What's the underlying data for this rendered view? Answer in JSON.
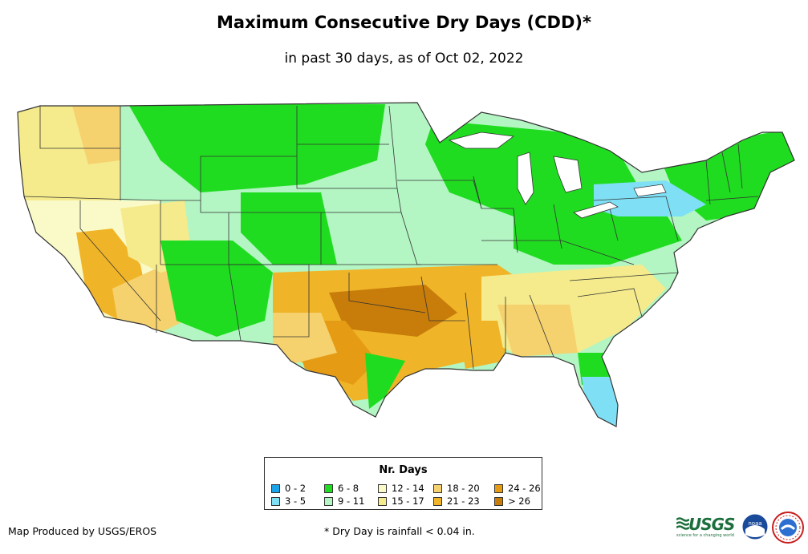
{
  "title": "Maximum Consecutive Dry Days (CDD)*",
  "subtitle": "in past 30 days, as of Oct 02, 2022",
  "legend": {
    "title": "Nr. Days",
    "items": [
      {
        "label": "0 - 2",
        "color": "#1aa3e8"
      },
      {
        "label": "3 - 5",
        "color": "#7fe0f5"
      },
      {
        "label": "6 - 8",
        "color": "#20dc20"
      },
      {
        "label": "9 - 11",
        "color": "#b3f5c3"
      },
      {
        "label": "12 - 14",
        "color": "#fafac8"
      },
      {
        "label": "15 - 17",
        "color": "#f5eb8c"
      },
      {
        "label": "18 - 20",
        "color": "#f5d26e"
      },
      {
        "label": "21 - 23",
        "color": "#f0b428"
      },
      {
        "label": "24 - 26",
        "color": "#e69b14"
      },
      {
        "label": "> 26",
        "color": "#c87d0a"
      }
    ]
  },
  "footer": {
    "producer": "Map Produced by USGS/EROS",
    "note": "* Dry Day is rainfall < 0.04 in."
  },
  "logos": {
    "usgs": "USGS",
    "usgs_tagline": "science for a changing world",
    "noaa": "noaa"
  }
}
